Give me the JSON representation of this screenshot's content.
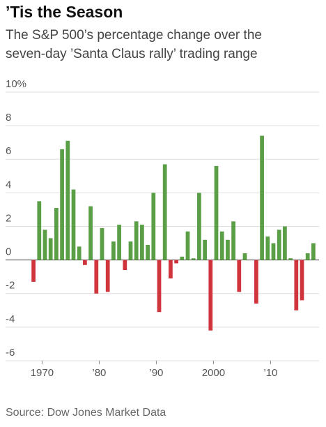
{
  "chart_data": {
    "type": "bar",
    "title": "’Tis the Season",
    "subtitle": "The S&P 500’s percentage change over the seven-day ’Santa Claus rally’ trading range",
    "source": "Source: Dow Jones Market Data",
    "x": [
      1969,
      1970,
      1971,
      1972,
      1973,
      1974,
      1975,
      1976,
      1977,
      1978,
      1979,
      1980,
      1981,
      1982,
      1983,
      1984,
      1985,
      1986,
      1987,
      1988,
      1989,
      1990,
      1991,
      1992,
      1993,
      1994,
      1995,
      1996,
      1997,
      1998,
      1999,
      2000,
      2001,
      2002,
      2003,
      2004,
      2005,
      2006,
      2007,
      2008,
      2009,
      2010,
      2011,
      2012,
      2013,
      2014,
      2015,
      2016,
      2017,
      2018
    ],
    "values": [
      -1.3,
      3.5,
      1.8,
      1.3,
      3.1,
      6.6,
      7.1,
      4.2,
      0.8,
      -0.3,
      3.2,
      -2.0,
      1.9,
      -1.9,
      1.1,
      2.1,
      -0.6,
      1.1,
      2.3,
      2.1,
      0.9,
      4.0,
      -3.1,
      5.7,
      -1.1,
      -0.2,
      0.2,
      1.7,
      0.1,
      4.0,
      1.2,
      -4.2,
      5.6,
      1.7,
      1.2,
      2.3,
      -1.9,
      0.4,
      0,
      -2.6,
      7.4,
      1.4,
      1.0,
      1.8,
      2.0,
      0.1,
      -3.0,
      -2.4,
      0.4,
      1.0
    ],
    "positive_color": "#5a9e46",
    "negative_color": "#d0343d",
    "xlim": [
      1969,
      2019
    ],
    "xticks": [
      1970,
      {
        "value": 1980,
        "label": "’80"
      },
      {
        "value": 1990,
        "label": "’90"
      },
      2000,
      {
        "value": 2010,
        "label": "’10"
      }
    ],
    "ylim": [
      -6,
      10
    ],
    "yticks": [
      {
        "value": 10,
        "label": "10%"
      },
      8,
      6,
      4,
      2,
      0,
      -2,
      -4,
      -6
    ],
    "grid": true
  }
}
